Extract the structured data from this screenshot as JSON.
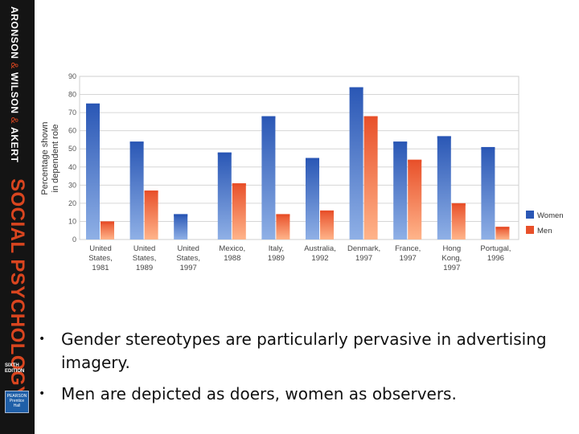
{
  "sidebar": {
    "authors": {
      "a": "ARONSON",
      "b": "WILSON",
      "c": "AKERT",
      "sep": "&"
    },
    "book_title": "SOCIAL PSYCHOLOGY",
    "edition": "SIXTH EDITION",
    "publisher": "PEARSON Prentice Hall"
  },
  "chart_data": {
    "type": "bar",
    "ylabel": "Percentage shown in dependent role",
    "ylim": [
      0,
      90
    ],
    "yticks": [
      0,
      10,
      20,
      30,
      40,
      50,
      60,
      70,
      80,
      90
    ],
    "categories": [
      [
        "United",
        "States,",
        "1981"
      ],
      [
        "United",
        "States,",
        "1989"
      ],
      [
        "United",
        "States,",
        "1997"
      ],
      [
        "Mexico,",
        "1988"
      ],
      [
        "Italy,",
        "1989"
      ],
      [
        "Australia,",
        "1992"
      ],
      [
        "Denmark,",
        "1997"
      ],
      [
        "France,",
        "1997"
      ],
      [
        "Hong",
        "Kong,",
        "1997"
      ],
      [
        "Portugal,",
        "1996"
      ]
    ],
    "series": [
      {
        "name": "Women",
        "color": "#2a57b5",
        "values": [
          75,
          54,
          14,
          48,
          68,
          45,
          84,
          54,
          57,
          51
        ]
      },
      {
        "name": "Men",
        "color": "#e8502a",
        "values": [
          10,
          27,
          null,
          31,
          14,
          16,
          68,
          44,
          20,
          7
        ]
      }
    ],
    "grid": true,
    "legend": "right"
  },
  "bullets": [
    "Gender stereotypes are particularly pervasive in advertising imagery.",
    "Men are depicted as doers, women as observers."
  ]
}
